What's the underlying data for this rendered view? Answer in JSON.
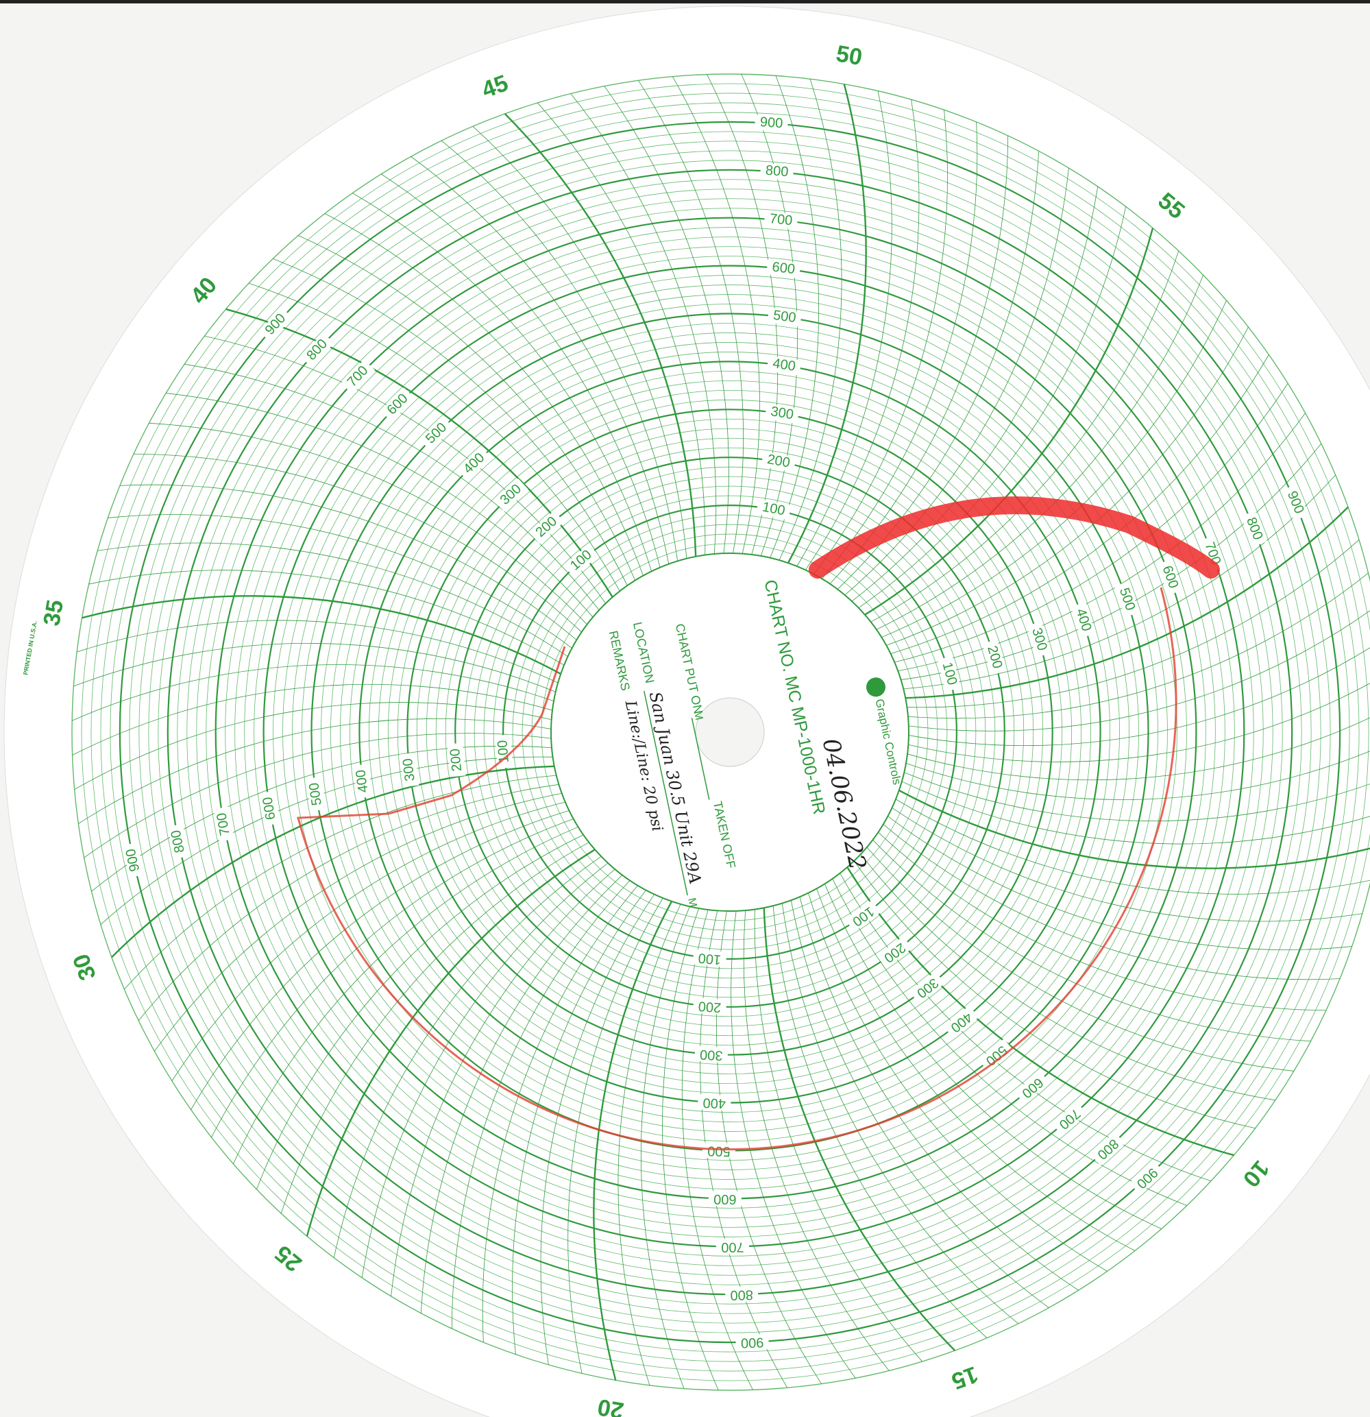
{
  "brand": "Graphic Controls",
  "chart_no": "CHART NO. MC MP-1000-1HR",
  "printed": "PRINTED IN U.S.A.",
  "fields": {
    "put_on": "CHART PUT ON",
    "taken_off": "TAKEN OFF",
    "location": "LOCATION",
    "remarks": "REMARKS",
    "m1": "M",
    "m2": "M"
  },
  "handwritten": {
    "date": "04.06.2022",
    "location": "San Juan 30.5 Unit 29A",
    "remarks": "Line:/Line: 20 psi"
  },
  "time_labels": [
    45,
    50,
    55,
    10,
    15,
    20,
    25,
    30,
    35,
    40
  ],
  "scale": {
    "range": [
      0,
      1000
    ],
    "ticks": [
      100,
      200,
      300,
      400,
      500,
      600,
      700,
      800,
      900
    ]
  }
}
